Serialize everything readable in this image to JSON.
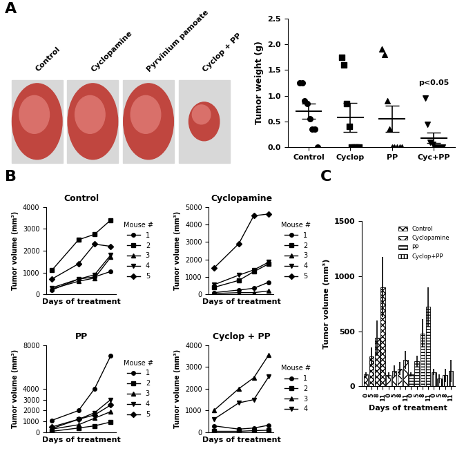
{
  "panels": [
    "A",
    "B",
    "C"
  ],
  "photos": {
    "labels": [
      "Control",
      "Cyclopamine",
      "Pyrvinium pamoate",
      "Cyclop + PP"
    ]
  },
  "chart_data": [
    {
      "type": "scatter",
      "ylabel": "Tumor weight (g)",
      "categories": [
        "Control",
        "Cyclop",
        "PP",
        "Cyc+PP"
      ],
      "color": "#000000",
      "ylim": [
        0,
        2.5
      ],
      "yticks": [
        {
          "value": 0,
          "label": "0.0"
        },
        {
          "value": 0.5,
          "label": "0.5"
        },
        {
          "value": 1,
          "label": "1.0"
        },
        {
          "value": 1.5,
          "label": "1.5"
        },
        {
          "value": 2,
          "label": "2.0"
        },
        {
          "value": 2.5,
          "label": "2.5"
        }
      ],
      "groups": [
        {
          "marker": "o",
          "values": [
            1.25,
            1.25,
            0.9,
            0.85,
            0.55,
            0.35,
            0.35,
            0.0
          ],
          "mean": 0.7,
          "error": 0.15
        },
        {
          "marker": "s",
          "values": [
            1.75,
            1.6,
            0.85,
            0.4,
            0.0,
            0.0,
            0.0,
            0.0
          ],
          "mean": 0.58,
          "error": 0.28
        },
        {
          "marker": "^",
          "values": [
            1.9,
            1.8,
            0.9,
            0.35,
            0.0,
            0.0,
            0.0,
            0.0,
            0.0
          ],
          "mean": 0.55,
          "error": 0.26
        },
        {
          "marker": "v",
          "values": [
            0.95,
            0.45,
            0.1,
            0.05,
            0.0,
            0.0,
            0.0,
            0.0
          ],
          "mean": 0.18,
          "error": 0.1
        }
      ],
      "annotation": {
        "text": "p<0.05",
        "category": "Cyc+PP"
      }
    },
    {
      "type": "line",
      "title": "Control",
      "xlabel": "Days of treatment",
      "ylabel": "Tumor volume (mm³)",
      "x": [
        0,
        5,
        8,
        11
      ],
      "xlim": [
        -1,
        12
      ],
      "ylim": [
        0,
        4000
      ],
      "yticks": [
        0,
        1000,
        2000,
        3000,
        4000
      ],
      "tick_labels": "y",
      "legend": "right",
      "legend_title": "Mouse #",
      "series": [
        {
          "name": "1",
          "marker": "o",
          "color": "#000000",
          "values": [
            200,
            700,
            800,
            1050
          ]
        },
        {
          "name": "2",
          "marker": "s",
          "color": "#000000",
          "values": [
            1100,
            2500,
            2750,
            3400
          ]
        },
        {
          "name": "3",
          "marker": "^",
          "color": "#000000",
          "values": [
            250,
            600,
            750,
            1700
          ]
        },
        {
          "name": "4",
          "marker": "v",
          "color": "#000000",
          "values": [
            300,
            700,
            900,
            1800
          ]
        },
        {
          "name": "5",
          "marker": "D",
          "color": "#000000",
          "values": [
            700,
            1400,
            2300,
            2200
          ]
        }
      ]
    },
    {
      "type": "line",
      "title": "Cyclopamine",
      "xlabel": "Days of treatment",
      "ylabel": "Tumor volume (mm³)",
      "x": [
        0,
        5,
        8,
        11
      ],
      "xlim": [
        -1,
        12
      ],
      "ylim": [
        0,
        5000
      ],
      "yticks": [
        0,
        1000,
        2000,
        3000,
        4000,
        5000
      ],
      "tick_labels": "y",
      "legend": "right",
      "legend_title": "Mouse #",
      "series": [
        {
          "name": "1",
          "marker": "o",
          "color": "#000000",
          "values": [
            100,
            250,
            350,
            700
          ]
        },
        {
          "name": "2",
          "marker": "s",
          "color": "#000000",
          "values": [
            400,
            800,
            1300,
            1750
          ]
        },
        {
          "name": "3",
          "marker": "^",
          "color": "#000000",
          "values": [
            50,
            100,
            100,
            200
          ]
        },
        {
          "name": "4",
          "marker": "v",
          "color": "#000000",
          "values": [
            550,
            1100,
            1400,
            1850
          ]
        },
        {
          "name": "5",
          "marker": "D",
          "color": "#000000",
          "values": [
            1500,
            2900,
            4500,
            4600
          ]
        }
      ]
    },
    {
      "type": "line",
      "title": "PP",
      "xlabel": "Days of treatment",
      "ylabel": "Tumor volume (mm³)",
      "x": [
        0,
        5,
        8,
        11
      ],
      "xlim": [
        -1,
        12
      ],
      "ylim": [
        0,
        8000
      ],
      "yticks": [
        0,
        1000,
        2000,
        3000,
        4000,
        8000
      ],
      "tick_labels": "y",
      "legend": "right",
      "legend_title": "Mouse #",
      "series": [
        {
          "name": "1",
          "marker": "o",
          "color": "#000000",
          "values": [
            1100,
            2000,
            4000,
            7000
          ]
        },
        {
          "name": "2",
          "marker": "s",
          "color": "#000000",
          "values": [
            100,
            400,
            600,
            950
          ]
        },
        {
          "name": "3",
          "marker": "^",
          "color": "#000000",
          "values": [
            300,
            700,
            1300,
            1900
          ]
        },
        {
          "name": "4",
          "marker": "v",
          "color": "#000000",
          "values": [
            350,
            1200,
            1800,
            3000
          ]
        },
        {
          "name": "5",
          "marker": "D",
          "color": "#000000",
          "values": [
            500,
            1200,
            1600,
            2500
          ]
        }
      ]
    },
    {
      "type": "line",
      "title": "Cyclop + PP",
      "xlabel": "Days of treatment",
      "ylabel": "Tumor volume (mm³)",
      "x": [
        0,
        5,
        8,
        11
      ],
      "xlim": [
        -1,
        12
      ],
      "ylim": [
        0,
        4000
      ],
      "yticks": [
        0,
        1000,
        2000,
        3000,
        4000
      ],
      "tick_labels": "y",
      "legend": "right",
      "legend_title": "Mouse #",
      "series": [
        {
          "name": "1",
          "marker": "o",
          "color": "#000000",
          "values": [
            300,
            150,
            200,
            330
          ]
        },
        {
          "name": "2",
          "marker": "s",
          "color": "#000000",
          "values": [
            50,
            50,
            80,
            100
          ]
        },
        {
          "name": "3",
          "marker": "^",
          "color": "#000000",
          "values": [
            1000,
            2000,
            2500,
            3550
          ]
        },
        {
          "name": "4",
          "marker": "v",
          "color": "#000000",
          "values": [
            600,
            1350,
            1500,
            2550
          ]
        }
      ]
    },
    {
      "type": "bar",
      "xlabel": "Days of treatment",
      "ylabel": "Tumor volume (mm³)",
      "categories": [
        "0",
        "5",
        "8",
        "11",
        "0",
        "5",
        "8",
        "11",
        "0",
        "5",
        "8",
        "11",
        "0",
        "5",
        "8",
        "11"
      ],
      "ylim": [
        0,
        1500
      ],
      "yticks": [
        0,
        500,
        1000,
        1500
      ],
      "legend": "upper right",
      "series": [
        {
          "name": "Control",
          "color": "#ffffff",
          "values": [
            110,
            270,
            440,
            900,
            null,
            null,
            null,
            null,
            null,
            null,
            null,
            null,
            null,
            null,
            null,
            null
          ],
          "error": [
            20,
            80,
            160,
            270,
            null,
            null,
            null,
            null,
            null,
            null,
            null,
            null,
            null,
            null,
            null,
            null
          ]
        },
        {
          "name": "Cyclopamine",
          "color": "#ffffff",
          "values": [
            null,
            null,
            null,
            null,
            100,
            140,
            160,
            240,
            null,
            null,
            null,
            null,
            null,
            null,
            null,
            null
          ],
          "error": [
            null,
            null,
            null,
            null,
            30,
            50,
            60,
            80,
            null,
            null,
            null,
            null,
            null,
            null,
            null,
            null
          ]
        },
        {
          "name": "PP",
          "color": "#ffffff",
          "values": [
            null,
            null,
            null,
            null,
            null,
            null,
            null,
            null,
            110,
            230,
            480,
            720,
            null,
            null,
            null,
            null
          ],
          "error": [
            null,
            null,
            null,
            null,
            null,
            null,
            null,
            null,
            20,
            50,
            130,
            180,
            null,
            null,
            null,
            null
          ]
        },
        {
          "name": "Cyclop+PP",
          "color": "#ffffff",
          "values": [
            null,
            null,
            null,
            null,
            null,
            null,
            null,
            null,
            null,
            null,
            null,
            null,
            130,
            70,
            100,
            140
          ],
          "error": [
            null,
            null,
            null,
            null,
            null,
            null,
            null,
            null,
            null,
            null,
            null,
            null,
            30,
            40,
            60,
            100
          ]
        }
      ]
    }
  ]
}
